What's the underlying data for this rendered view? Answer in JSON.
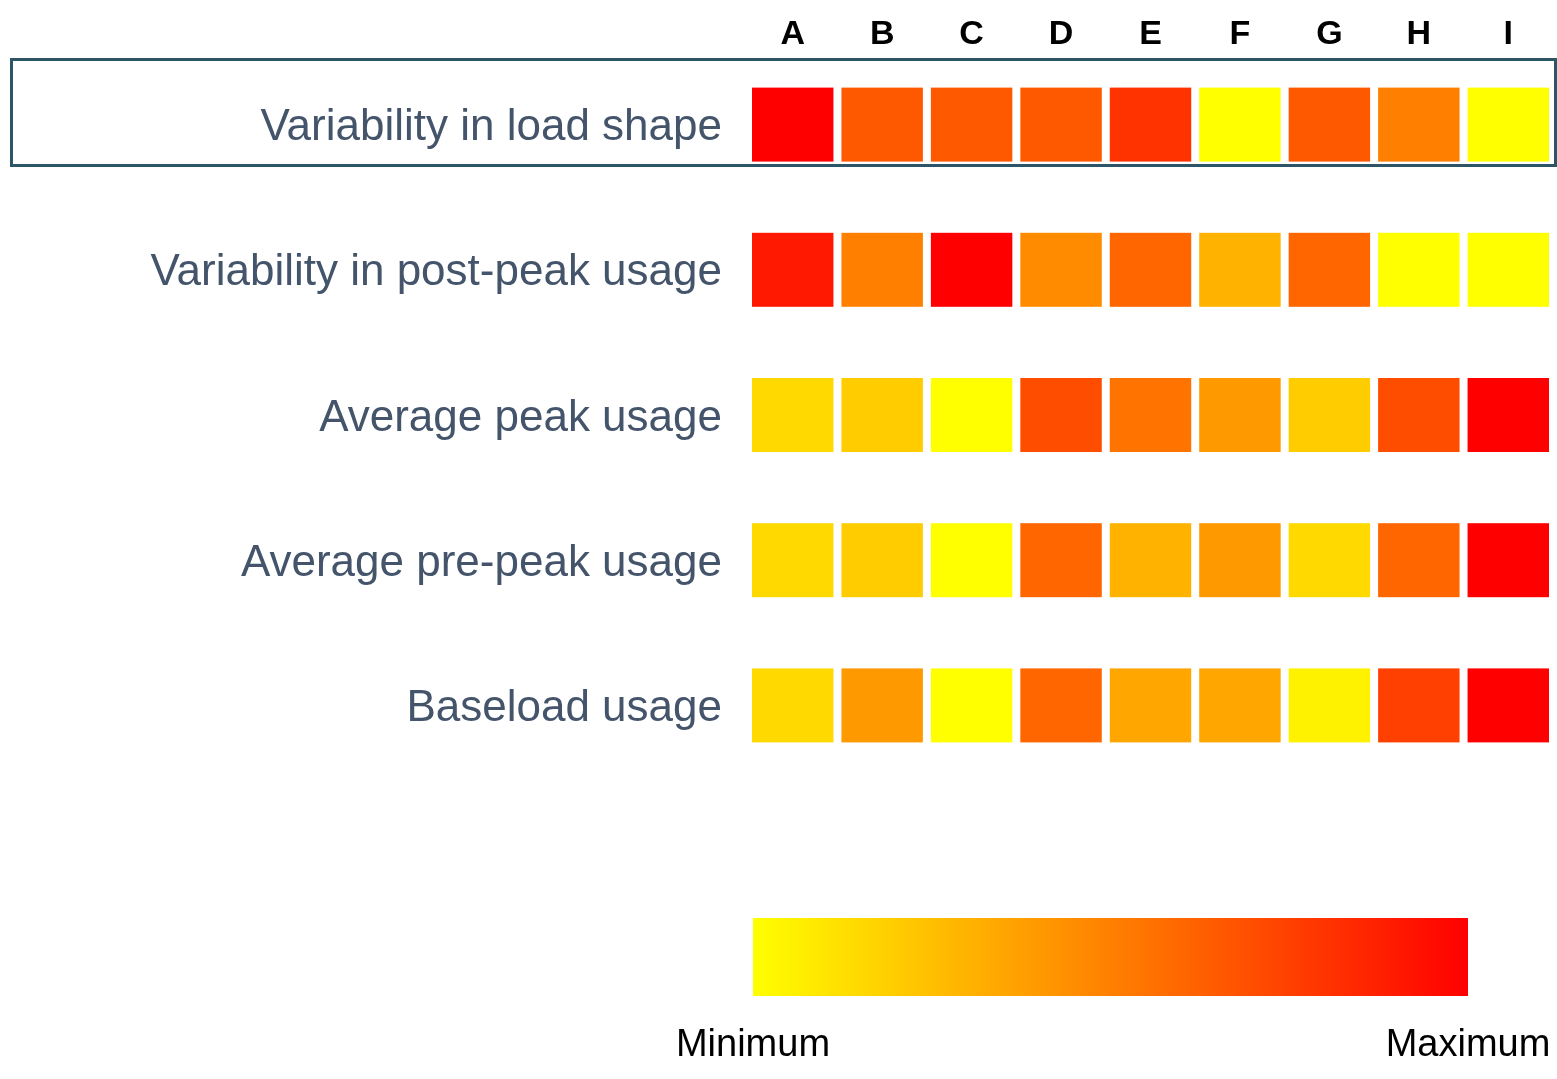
{
  "chart_data": {
    "type": "heatmap",
    "categories": [
      "A",
      "B",
      "C",
      "D",
      "E",
      "F",
      "G",
      "H",
      "I"
    ],
    "y_categories": [
      "Variability in load shape",
      "Variability in post-peak usage",
      "Average peak usage",
      "Average pre-peak usage",
      "Baseload usage"
    ],
    "cells": [
      [
        1.0,
        0.65,
        0.65,
        0.65,
        0.8,
        0.0,
        0.65,
        0.5,
        0.0
      ],
      [
        0.9,
        0.5,
        1.0,
        0.45,
        0.6,
        0.3,
        0.6,
        0.0,
        0.0
      ],
      [
        0.15,
        0.2,
        0.0,
        0.7,
        0.55,
        0.4,
        0.2,
        0.7,
        1.0
      ],
      [
        0.15,
        0.2,
        0.0,
        0.6,
        0.3,
        0.4,
        0.15,
        0.6,
        1.0
      ],
      [
        0.15,
        0.4,
        0.0,
        0.6,
        0.35,
        0.35,
        0.05,
        0.75,
        1.0
      ]
    ],
    "clim": [
      0,
      1
    ],
    "cticks": [
      {
        "value": 0,
        "label": "Minimum"
      },
      {
        "value": 1,
        "label": "Maximum"
      }
    ]
  }
}
